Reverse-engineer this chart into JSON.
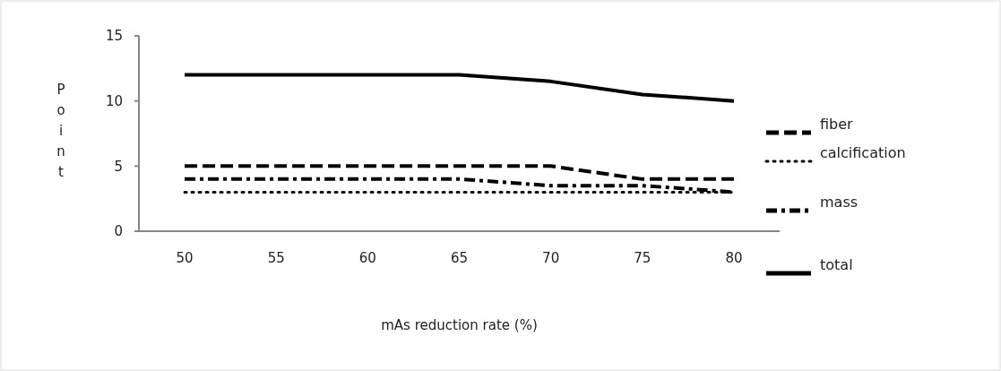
{
  "chart_data": {
    "type": "line",
    "xlabel": "mAs reduction rate (%)",
    "ylabel": "Point",
    "categories": [
      "50",
      "55",
      "60",
      "65",
      "70",
      "75",
      "80"
    ],
    "ylim": [
      0,
      15
    ],
    "yticks": [
      0,
      5,
      10,
      15
    ],
    "legend": "right",
    "series": [
      {
        "name": "fiber",
        "color": "#000000",
        "line_style": "dashed",
        "values": [
          5,
          5,
          5,
          5,
          5,
          4,
          4
        ]
      },
      {
        "name": "calcification",
        "color": "#000000",
        "line_style": "dotted",
        "values": [
          3,
          3,
          3,
          3,
          3,
          3,
          3
        ]
      },
      {
        "name": "mass",
        "color": "#000000",
        "line_style": "dashdot",
        "values": [
          4,
          4,
          4,
          4,
          3.5,
          3.5,
          3
        ]
      },
      {
        "name": "total",
        "color": "#000000",
        "line_style": "solid",
        "values": [
          12,
          12,
          12,
          12,
          11.5,
          10.5,
          10
        ]
      }
    ]
  }
}
